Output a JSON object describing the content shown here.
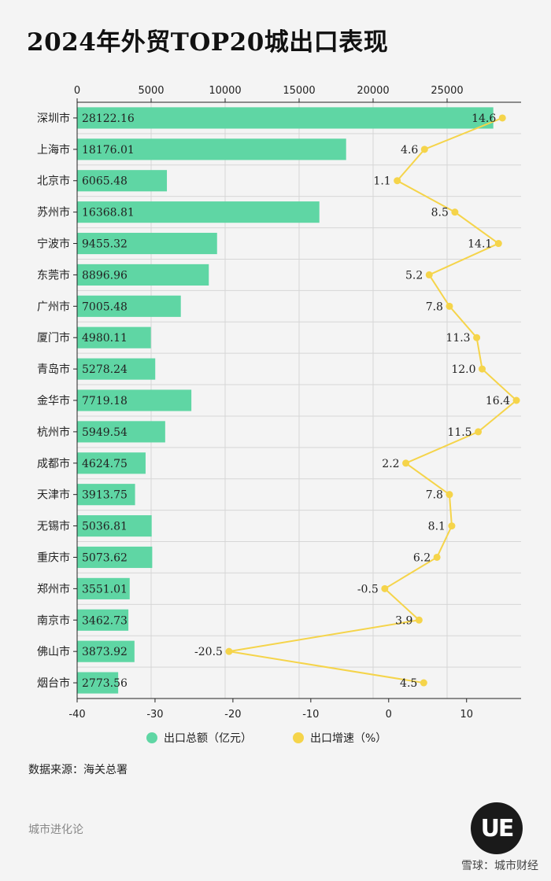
{
  "title": "2024年外贸TOP20城出口表现",
  "chart_data": {
    "type": "bar+line",
    "title": "2024年外贸TOP20城出口表现",
    "categories": [
      "深圳市",
      "上海市",
      "北京市",
      "苏州市",
      "宁波市",
      "东莞市",
      "广州市",
      "厦门市",
      "青岛市",
      "金华市",
      "杭州市",
      "成都市",
      "天津市",
      "无锡市",
      "重庆市",
      "郑州市",
      "南京市",
      "佛山市",
      "烟台市"
    ],
    "series": [
      {
        "name": "出口总额（亿元）",
        "type": "bar",
        "axis": "top",
        "color": "#5fd6a4",
        "values": [
          28122.16,
          18176.01,
          6065.48,
          16368.81,
          9455.32,
          8896.96,
          7005.48,
          4980.11,
          5278.24,
          7719.18,
          5949.54,
          4624.75,
          3913.75,
          5036.81,
          5073.62,
          3551.01,
          3462.73,
          3873.92,
          2773.56
        ]
      },
      {
        "name": "出口增速（%）",
        "type": "line",
        "axis": "bottom",
        "color": "#f5d44a",
        "values": [
          14.6,
          4.6,
          1.1,
          8.5,
          14.1,
          5.2,
          7.8,
          11.3,
          12.0,
          16.4,
          11.5,
          2.2,
          7.8,
          8.1,
          6.2,
          -0.5,
          3.9,
          -20.5,
          4.5
        ],
        "labels": [
          "14.6",
          "4.6",
          "1.1",
          "8.5",
          "14.1",
          "5.2",
          "7.8",
          "11.3",
          "12.0",
          "16.4",
          "11.5",
          "2.2",
          "7.8",
          "8.1",
          "6.2",
          "-0.5",
          "3.9",
          "-20.5",
          "4.5"
        ]
      }
    ],
    "x_top": {
      "range": [
        0,
        30000
      ],
      "ticks": [
        "0",
        "5000",
        "10000",
        "15000",
        "20000",
        "25000"
      ],
      "tick_values": [
        0,
        5000,
        10000,
        15000,
        20000,
        25000
      ]
    },
    "x_bottom": {
      "range": [
        -40,
        17
      ],
      "ticks": [
        "-40",
        "-30",
        "-20",
        "-10",
        "0",
        "10"
      ],
      "tick_values": [
        -40,
        -30,
        -20,
        -10,
        0,
        10
      ]
    },
    "grid": true,
    "legend_position": "bottom"
  },
  "legend": [
    {
      "label": "出口总额（亿元）",
      "color": "#5fd6a4"
    },
    {
      "label": "出口增速（%）",
      "color": "#f5d44a"
    }
  ],
  "source": "数据来源：海关总署",
  "brand": "城市进化论",
  "logo_text": "UE",
  "footer": "雪球：城市财经"
}
